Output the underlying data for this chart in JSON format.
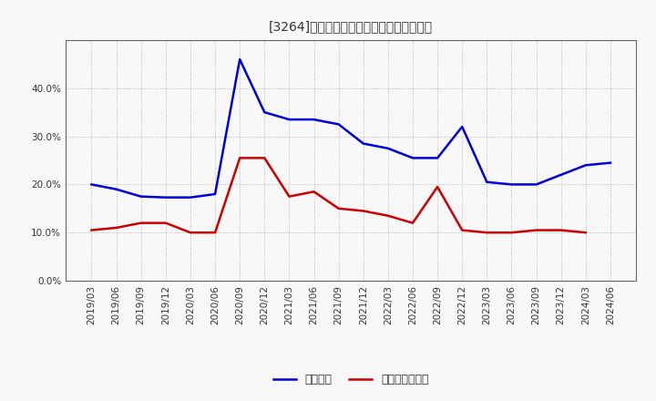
{
  "title": "[3264]　固定比率、固定長期適合率の推移",
  "background_color": "#f8f8f8",
  "plot_bg_color": "#f8f8f8",
  "grid_color": "#aaaaaa",
  "xlabels": [
    "2019/03",
    "2019/06",
    "2019/09",
    "2019/12",
    "2020/03",
    "2020/06",
    "2020/09",
    "2020/12",
    "2021/03",
    "2021/06",
    "2021/09",
    "2021/12",
    "2022/03",
    "2022/06",
    "2022/09",
    "2022/12",
    "2023/03",
    "2023/06",
    "2023/09",
    "2023/12",
    "2024/03",
    "2024/06"
  ],
  "fixed_ratio": [
    20.0,
    19.0,
    17.5,
    17.3,
    17.3,
    18.0,
    46.0,
    35.0,
    33.5,
    33.5,
    32.5,
    28.5,
    27.5,
    25.5,
    25.5,
    32.0,
    20.5,
    20.0,
    20.0,
    22.0,
    24.0,
    24.5
  ],
  "fixed_long_ratio": [
    10.5,
    11.0,
    12.0,
    12.0,
    10.0,
    10.0,
    25.5,
    25.5,
    17.5,
    18.5,
    15.0,
    14.5,
    13.5,
    12.0,
    19.5,
    10.5,
    10.0,
    10.0,
    10.5,
    10.5,
    10.0,
    null
  ],
  "line1_color": "#0000dd",
  "line2_color": "#cc0000",
  "line_width": 1.8,
  "ylim": [
    0.0,
    50.0
  ],
  "yticks": [
    0.0,
    10.0,
    20.0,
    30.0,
    40.0
  ],
  "legend_label1": "固定比率",
  "legend_label2": "固定長期適合率",
  "title_fontsize": 12,
  "tick_fontsize": 7.5,
  "legend_fontsize": 9
}
